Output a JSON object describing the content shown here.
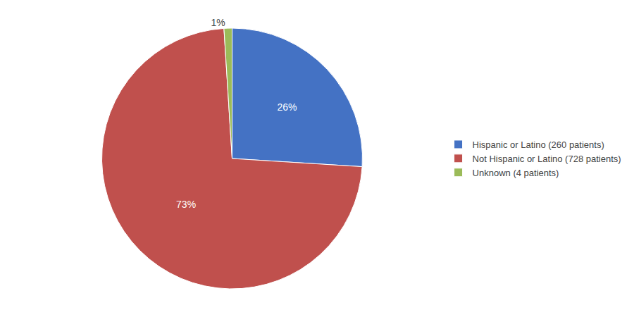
{
  "chart_data": {
    "type": "pie",
    "categories": [
      "Hispanic or Latino (260 patients)",
      "Not Hispanic or Latino (728 patients)",
      "Unknown (4 patients)"
    ],
    "values": [
      26,
      73,
      1
    ],
    "value_labels": [
      "26%",
      "73%",
      "1%"
    ],
    "colors": [
      "#4472C4",
      "#C0504D",
      "#9BBB59"
    ],
    "data_labels": true,
    "legend": "right"
  }
}
